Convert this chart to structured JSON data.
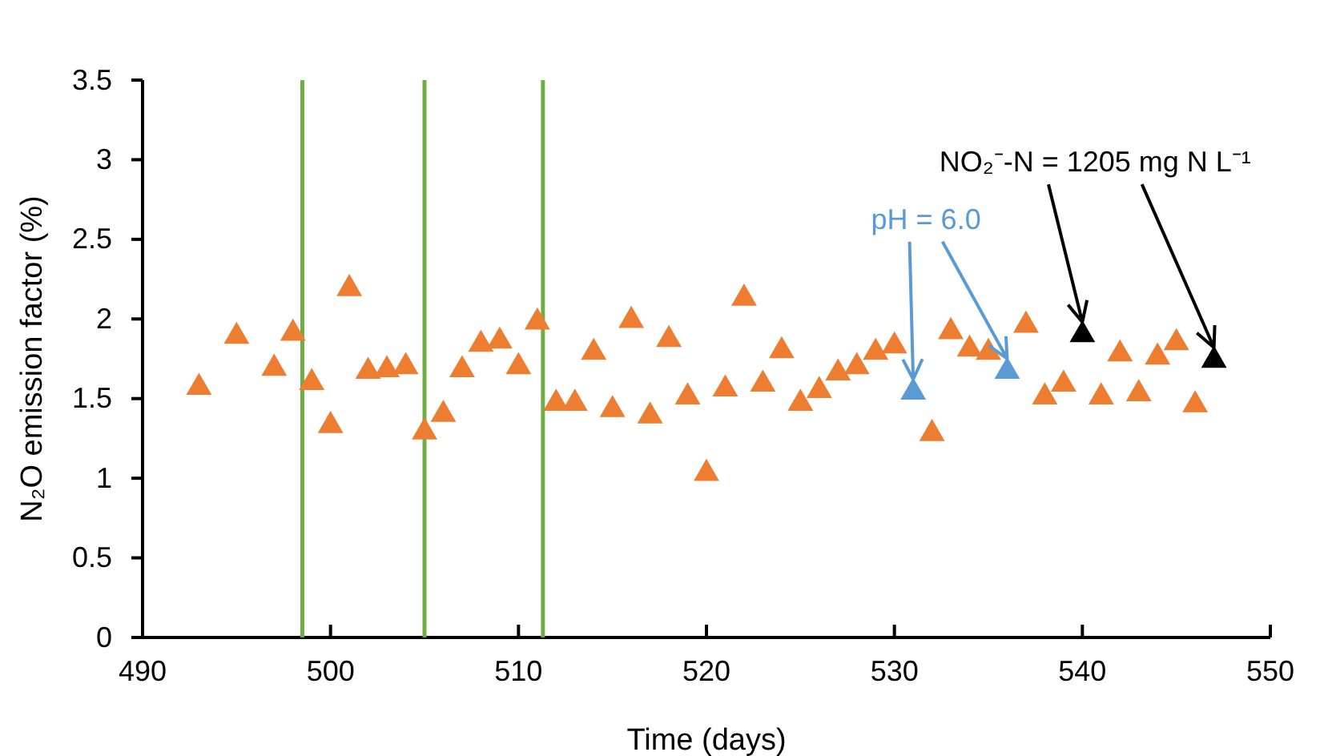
{
  "chart_data": {
    "type": "scatter",
    "xlabel": "Time (days)",
    "ylabel": "N₂O emission factor (%)",
    "xlim": [
      490,
      550
    ],
    "xticks": [
      490,
      500,
      510,
      520,
      530,
      540,
      550
    ],
    "ylim": [
      0,
      3.5
    ],
    "yticks": [
      0,
      0.5,
      1,
      1.5,
      2,
      2.5,
      3,
      3.5
    ],
    "grid": false,
    "marker": "triangle",
    "series": [
      {
        "color": "#ed7d31",
        "x": [
          493,
          495,
          497,
          498,
          499,
          500,
          501,
          502,
          503,
          504,
          505,
          506,
          507,
          508,
          509,
          510,
          511,
          512,
          513,
          514,
          515,
          516,
          517,
          518,
          519,
          520,
          521,
          522,
          523,
          524,
          525,
          526,
          527,
          528,
          529,
          530,
          532,
          533,
          534,
          535,
          537,
          538,
          539,
          541,
          542,
          543,
          544,
          545,
          546
        ],
        "values": [
          1.57,
          1.89,
          1.69,
          1.91,
          1.6,
          1.33,
          2.19,
          1.67,
          1.68,
          1.7,
          1.29,
          1.4,
          1.68,
          1.84,
          1.86,
          1.7,
          1.98,
          1.47,
          1.47,
          1.79,
          1.43,
          1.99,
          1.39,
          1.87,
          1.51,
          1.03,
          1.56,
          2.13,
          1.59,
          1.8,
          1.47,
          1.55,
          1.66,
          1.7,
          1.79,
          1.83,
          1.28,
          1.92,
          1.81,
          1.79,
          1.96,
          1.51,
          1.59,
          1.51,
          1.78,
          1.53,
          1.76,
          1.85,
          1.46
        ]
      },
      {
        "color": "#5b9bd5",
        "x": [
          531,
          536
        ],
        "values": [
          1.54,
          1.67
        ]
      },
      {
        "color": "#000000",
        "x": [
          540,
          547
        ],
        "values": [
          1.9,
          1.74
        ]
      }
    ],
    "ref_lines": [
      {
        "axis": "x",
        "value": 498.5,
        "color": "#70ad47"
      },
      {
        "axis": "x",
        "value": 505,
        "color": "#70ad47"
      },
      {
        "axis": "x",
        "value": 511.3,
        "color": "#70ad47"
      }
    ],
    "annotations": [
      {
        "text": "pH = 6.0",
        "x": 531,
        "y": 1.54
      },
      {
        "text": "NO₂⁻-N = 1205 mg N L⁻¹",
        "x": 540,
        "y": 1.9
      }
    ]
  }
}
